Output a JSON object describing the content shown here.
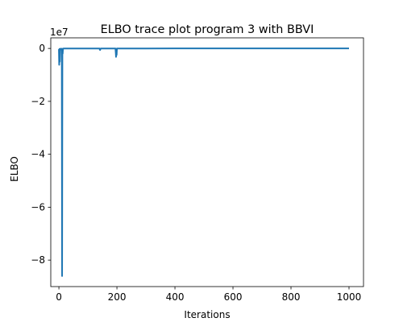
{
  "chart_data": {
    "type": "line",
    "title": "ELBO trace plot program 3 with BBVI",
    "xlabel": "Iterations",
    "ylabel": "ELBO",
    "y_offset_label": "1e7",
    "xlim": [
      -28,
      1050
    ],
    "ylim": [
      -90000000,
      4000000
    ],
    "x_ticks": [
      0,
      200,
      400,
      600,
      800,
      1000
    ],
    "y_ticks": [
      0,
      -20000000,
      -40000000,
      -60000000,
      -80000000
    ],
    "x_tick_labels": [
      "0",
      "200",
      "400",
      "600",
      "800",
      "1000"
    ],
    "y_tick_labels": [
      "0",
      "−2",
      "−4",
      "−6",
      "−8"
    ],
    "grid": false,
    "series": [
      {
        "color": "#1f77b4",
        "x": [
          0,
          1,
          2,
          3,
          4,
          5,
          6,
          7,
          8,
          9,
          10,
          11,
          12,
          13,
          14,
          15,
          16,
          17,
          18,
          20,
          40,
          60,
          80,
          100,
          120,
          140,
          141,
          142,
          143,
          144,
          145,
          160,
          180,
          195,
          196,
          197,
          198,
          199,
          200,
          220,
          240,
          260,
          280,
          300,
          400,
          500,
          600,
          700,
          800,
          900,
          1000
        ],
        "values": [
          -300000,
          -6200000,
          -200000,
          -5000000,
          -800000,
          -150000,
          -400000,
          -100000,
          -200000,
          -100000,
          -150000,
          -86000000,
          -150000,
          -2000000,
          -100000,
          -50000,
          -100000,
          -50000,
          -30000,
          -30000,
          -20000,
          -20000,
          -20000,
          -20000,
          -20000,
          -20000,
          -400000,
          -600000,
          -300000,
          -50000,
          -20000,
          -20000,
          -20000,
          -20000,
          -1500000,
          -3200000,
          -1000000,
          -2500000,
          -20000,
          -20000,
          -20000,
          -20000,
          -20000,
          -20000,
          -10000,
          -10000,
          -10000,
          -10000,
          -10000,
          -10000,
          -10000
        ]
      }
    ]
  }
}
